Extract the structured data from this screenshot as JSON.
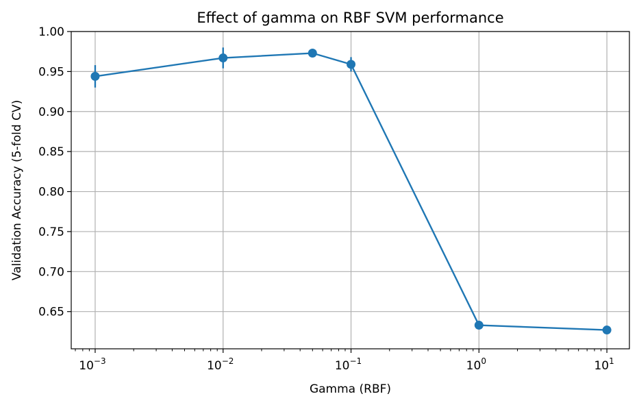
{
  "chart_data": {
    "type": "line",
    "title": "Effect of gamma on RBF SVM performance",
    "xlabel": "Gamma (RBF)",
    "ylabel": "Validation Accuracy (5-fold CV)",
    "xscale": "log",
    "xlim": [
      0.00065,
      15
    ],
    "ylim": [
      0.6035,
      1.0
    ],
    "grid": true,
    "x_ticks": [
      {
        "value": 0.001,
        "base": "10",
        "exp": "−3"
      },
      {
        "value": 0.01,
        "base": "10",
        "exp": "−2"
      },
      {
        "value": 0.1,
        "base": "10",
        "exp": "−1"
      },
      {
        "value": 1,
        "base": "10",
        "exp": "0"
      },
      {
        "value": 10,
        "base": "10",
        "exp": "1"
      }
    ],
    "y_ticks": [
      {
        "value": 0.65,
        "label": "0.65"
      },
      {
        "value": 0.7,
        "label": "0.70"
      },
      {
        "value": 0.75,
        "label": "0.75"
      },
      {
        "value": 0.8,
        "label": "0.80"
      },
      {
        "value": 0.85,
        "label": "0.85"
      },
      {
        "value": 0.9,
        "label": "0.90"
      },
      {
        "value": 0.95,
        "label": "0.95"
      },
      {
        "value": 1.0,
        "label": "1.00"
      }
    ],
    "series": [
      {
        "x": [
          0.001,
          0.01,
          0.05,
          0.1,
          1,
          10
        ],
        "y": [
          0.944,
          0.967,
          0.973,
          0.959,
          0.633,
          0.627
        ],
        "yerr": [
          0.014,
          0.013,
          0.003,
          0.009,
          0.005,
          0.003
        ],
        "color": "#1f77b4"
      }
    ]
  }
}
